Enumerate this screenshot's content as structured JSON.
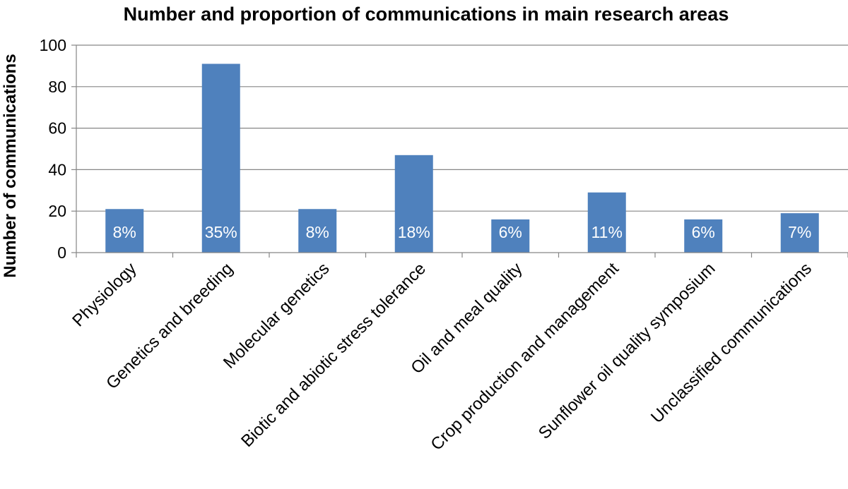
{
  "chart_data": {
    "type": "bar",
    "title": "Number and proportion of communications in main research areas",
    "xlabel": "",
    "ylabel": "Number of communications",
    "ylim": [
      0,
      100
    ],
    "yticks": [
      0,
      20,
      40,
      60,
      80,
      100
    ],
    "grid": true,
    "legend": "none",
    "bar_color": "#4f81bd",
    "categories": [
      "Physiology",
      "Genetics and breeding",
      "Molecular genetics",
      "Biotic and abiotic stress tolerance",
      "Oil and meal quality",
      "Crop production and management",
      "Sunflower oil quality symposium",
      "Unclassified communications"
    ],
    "values": [
      21,
      91,
      21,
      47,
      16,
      29,
      16,
      19
    ],
    "data_labels": [
      "8%",
      "35%",
      "8%",
      "18%",
      "6%",
      "11%",
      "6%",
      "7%"
    ]
  }
}
